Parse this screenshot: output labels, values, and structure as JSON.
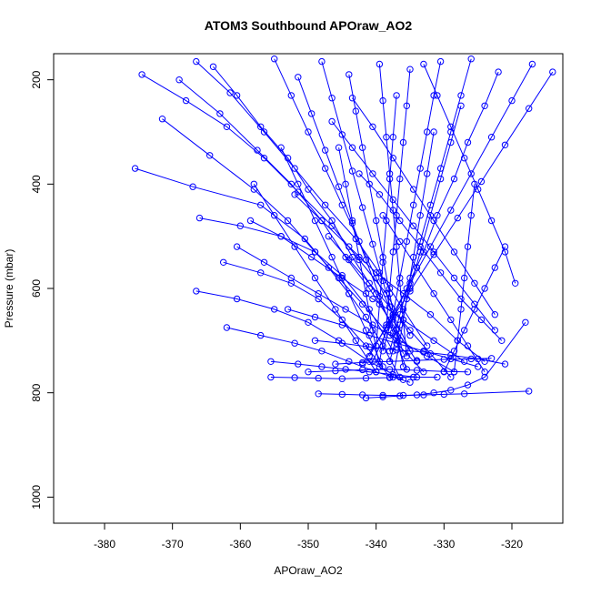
{
  "chart_data": {
    "type": "line",
    "title": "ATOM3 Southbound APOraw_AO2",
    "xlabel": "APOraw_AO2",
    "ylabel": "Pressure (mbar)",
    "xlim": [
      -387.5,
      -312.5
    ],
    "ylim": [
      1050,
      150
    ],
    "y_axis_inverted": true,
    "x_ticks": [
      {
        "value": -380,
        "label": "-380"
      },
      {
        "value": -370,
        "label": "-370"
      },
      {
        "value": -360,
        "label": "-360"
      },
      {
        "value": -350,
        "label": "-350"
      },
      {
        "value": -340,
        "label": "-340"
      },
      {
        "value": -330,
        "label": "-330"
      },
      {
        "value": -320,
        "label": "-320"
      }
    ],
    "y_ticks": [
      {
        "value": 200,
        "label": "200"
      },
      {
        "value": 400,
        "label": "400"
      },
      {
        "value": 600,
        "label": "600"
      },
      {
        "value": 800,
        "label": "800"
      },
      {
        "value": 1000,
        "label": "1000"
      }
    ],
    "grid": false,
    "marker": "open-circle",
    "color": "#0000ff",
    "series": [
      {
        "x": [
          -375.5,
          -367.0,
          -357.0,
          -350.5,
          -347.0,
          -344.0,
          -341.5,
          -339.0,
          -336.5
        ],
        "y": [
          370,
          405,
          440,
          505,
          560,
          610,
          655,
          710,
          770
        ]
      },
      {
        "x": [
          -371.5,
          -364.5,
          -358.0,
          -353.0,
          -349.0,
          -345.5,
          -342.0,
          -338.0,
          -333.0
        ],
        "y": [
          275,
          345,
          410,
          470,
          530,
          580,
          630,
          690,
          760
        ]
      },
      {
        "x": [
          -369.0,
          -363.0,
          -357.5,
          -352.5,
          -348.0,
          -344.5,
          -341.0,
          -337.5,
          -334.0
        ],
        "y": [
          200,
          265,
          335,
          400,
          470,
          540,
          600,
          670,
          740
        ]
      },
      {
        "x": [
          -366.5,
          -361.5,
          -356.5,
          -352.0,
          -347.5,
          -343.0,
          -339.5,
          -336.0,
          -332.5
        ],
        "y": [
          165,
          225,
          300,
          370,
          440,
          505,
          570,
          640,
          710
        ]
      },
      {
        "x": [
          -374.5,
          -368.0,
          -362.0,
          -356.5,
          -351.5,
          -346.5,
          -342.5,
          -338.5,
          -335.0
        ],
        "y": [
          190,
          240,
          290,
          350,
          415,
          480,
          545,
          610,
          690
        ]
      },
      {
        "x": [
          -364.0,
          -360.5,
          -357.0,
          -353.0,
          -350.0,
          -346.5,
          -343.5,
          -340.0,
          -337.0
        ],
        "y": [
          175,
          230,
          290,
          350,
          410,
          470,
          540,
          610,
          690
        ]
      },
      {
        "x": [
          -366.0,
          -360.0,
          -354.0,
          -349.0,
          -345.0,
          -341.0,
          -337.5
        ],
        "y": [
          465,
          480,
          500,
          530,
          575,
          640,
          720
        ]
      },
      {
        "x": [
          -362.5,
          -357.0,
          -352.5,
          -348.5,
          -345.0,
          -341.5,
          -338.0
        ],
        "y": [
          550,
          570,
          590,
          620,
          660,
          710,
          770
        ]
      },
      {
        "x": [
          -366.5,
          -360.5,
          -355.0,
          -350.0,
          -345.5,
          -341.0,
          -336.0
        ],
        "y": [
          605,
          620,
          640,
          665,
          700,
          740,
          775
        ]
      },
      {
        "x": [
          -362.0,
          -357.0,
          -352.0,
          -348.0,
          -344.0,
          -340.0,
          -335.0
        ],
        "y": [
          675,
          690,
          705,
          720,
          740,
          760,
          780
        ]
      },
      {
        "x": [
          -355.5,
          -351.5,
          -348.0,
          -344.5,
          -341.0,
          -337.5,
          -334.0
        ],
        "y": [
          740,
          745,
          750,
          755,
          760,
          765,
          770
        ]
      },
      {
        "x": [
          -355.5,
          -352.0,
          -348.5,
          -345.0,
          -341.5,
          -338.0,
          -334.5,
          -331.0
        ],
        "y": [
          770,
          771,
          772,
          773,
          772,
          771,
          770,
          770
        ]
      },
      {
        "x": [
          -348.5,
          -345.0,
          -342.0,
          -339.0,
          -336.0,
          -333.0,
          -330.0,
          -327.0,
          -317.5
        ],
        "y": [
          802,
          803,
          804,
          805,
          805,
          804,
          803,
          802,
          797
        ]
      },
      {
        "x": [
          -341.5,
          -339.0,
          -336.5,
          -334.0,
          -331.5,
          -329.0,
          -326.5,
          -324.0,
          -318.0
        ],
        "y": [
          810,
          808,
          806,
          804,
          800,
          795,
          785,
          770,
          665
        ]
      },
      {
        "x": [
          -326.0,
          -327.5,
          -329.0,
          -330.5,
          -332.0,
          -333.5,
          -335.0,
          -336.5,
          -338.0
        ],
        "y": [
          160,
          230,
          300,
          370,
          440,
          510,
          580,
          650,
          720
        ]
      },
      {
        "x": [
          -322.0,
          -324.0,
          -326.5,
          -328.5,
          -331.0,
          -333.0,
          -335.5,
          -338.0,
          -340.5
        ],
        "y": [
          185,
          250,
          320,
          390,
          460,
          530,
          600,
          670,
          740
        ]
      },
      {
        "x": [
          -317.0,
          -320.0,
          -323.0,
          -326.0,
          -329.0,
          -332.0,
          -335.0,
          -338.0,
          -341.0
        ],
        "y": [
          170,
          240,
          310,
          380,
          450,
          520,
          590,
          660,
          730
        ]
      },
      {
        "x": [
          -314.0,
          -317.5,
          -321.0,
          -324.5,
          -328.0,
          -331.5,
          -335.0,
          -338.5,
          -342.0
        ],
        "y": [
          185,
          255,
          325,
          395,
          465,
          535,
          605,
          675,
          745
        ]
      },
      {
        "x": [
          -330.5,
          -331.5,
          -332.5,
          -333.5,
          -334.5,
          -335.5,
          -336.5,
          -337.5,
          -339.0
        ],
        "y": [
          165,
          230,
          300,
          370,
          440,
          510,
          580,
          650,
          720
        ]
      },
      {
        "x": [
          -335.0,
          -335.5,
          -336.0,
          -336.5,
          -337.0,
          -337.5,
          -338.0,
          -338.5,
          -339.5
        ],
        "y": [
          180,
          250,
          320,
          390,
          460,
          530,
          600,
          670,
          740
        ]
      },
      {
        "x": [
          -339.5,
          -339.0,
          -338.5,
          -338.0,
          -337.5,
          -337.0,
          -336.5,
          -336.0,
          -335.5
        ],
        "y": [
          170,
          240,
          310,
          380,
          450,
          520,
          590,
          660,
          730
        ]
      },
      {
        "x": [
          -344.0,
          -343.0,
          -342.0,
          -341.0,
          -340.0,
          -339.0,
          -338.0,
          -337.0,
          -336.0
        ],
        "y": [
          190,
          260,
          330,
          400,
          470,
          540,
          610,
          680,
          750
        ]
      },
      {
        "x": [
          -348.0,
          -346.5,
          -345.0,
          -343.5,
          -342.0,
          -340.5,
          -339.0,
          -337.5,
          -336.0
        ],
        "y": [
          165,
          235,
          305,
          375,
          445,
          515,
          585,
          655,
          725
        ]
      },
      {
        "x": [
          -351.5,
          -349.5,
          -347.5,
          -345.5,
          -343.5,
          -341.5,
          -339.5,
          -337.5,
          -335.5
        ],
        "y": [
          195,
          265,
          335,
          405,
          475,
          545,
          615,
          685,
          755
        ]
      },
      {
        "x": [
          -355.0,
          -352.5,
          -350.0,
          -347.5,
          -345.0,
          -342.5,
          -340.0,
          -337.5,
          -335.0
        ],
        "y": [
          160,
          230,
          300,
          370,
          440,
          510,
          580,
          650,
          720
        ]
      },
      {
        "x": [
          -346.5,
          -343.5,
          -340.5,
          -337.5,
          -334.5,
          -331.5,
          -328.5,
          -325.5,
          -322.5
        ],
        "y": [
          280,
          330,
          380,
          430,
          480,
          530,
          580,
          630,
          680
        ]
      },
      {
        "x": [
          -342.5,
          -339.5,
          -336.5,
          -333.5,
          -330.5,
          -327.5,
          -324.5,
          -321.5
        ],
        "y": [
          380,
          420,
          470,
          520,
          570,
          620,
          660,
          700
        ]
      },
      {
        "x": [
          -352.0,
          -348.0,
          -344.0,
          -340.0,
          -336.0,
          -332.0,
          -328.0,
          -324.0
        ],
        "y": [
          420,
          470,
          520,
          570,
          610,
          650,
          700,
          740
        ]
      },
      {
        "x": [
          -358.5,
          -354.0,
          -349.5,
          -345.0,
          -340.5,
          -336.0,
          -331.5,
          -327.0
        ],
        "y": [
          470,
          500,
          540,
          580,
          620,
          660,
          700,
          740
        ]
      },
      {
        "x": [
          -360.5,
          -356.5,
          -352.5,
          -348.5,
          -344.5,
          -340.5,
          -336.5,
          -332.5,
          -328.5
        ],
        "y": [
          520,
          550,
          580,
          610,
          640,
          670,
          700,
          730,
          760
        ]
      },
      {
        "x": [
          -353.0,
          -349.0,
          -345.0,
          -341.0,
          -337.0,
          -333.0,
          -329.0,
          -325.0
        ],
        "y": [
          640,
          655,
          670,
          690,
          705,
          720,
          735,
          750
        ]
      },
      {
        "x": [
          -349.0,
          -345.0,
          -341.0,
          -337.0,
          -333.0,
          -329.0,
          -325.0,
          -321.0
        ],
        "y": [
          700,
          705,
          712,
          718,
          722,
          728,
          735,
          745
        ]
      },
      {
        "x": [
          -346.0,
          -342.0,
          -338.0,
          -334.0,
          -330.0,
          -326.0,
          -323.0
        ],
        "y": [
          745,
          742,
          740,
          738,
          736,
          735,
          734
        ]
      },
      {
        "x": [
          -350.0,
          -346.0,
          -342.0,
          -338.0,
          -334.0,
          -330.0,
          -326.5
        ],
        "y": [
          760,
          758,
          756,
          755,
          757,
          759,
          760
        ]
      },
      {
        "x": [
          -343.5,
          -340.5,
          -337.5,
          -334.5,
          -331.5,
          -328.5,
          -325.5,
          -322.5
        ],
        "y": [
          235,
          290,
          350,
          410,
          470,
          530,
          590,
          650
        ]
      },
      {
        "x": [
          -333.0,
          -331.0,
          -329.0,
          -327.0,
          -325.0,
          -323.0,
          -321.0,
          -319.5
        ],
        "y": [
          170,
          230,
          290,
          350,
          410,
          470,
          530,
          590
        ]
      },
      {
        "x": [
          -327.5,
          -329.0,
          -330.5,
          -332.0,
          -333.5,
          -335.0,
          -336.5,
          -338.0
        ],
        "y": [
          250,
          320,
          390,
          460,
          530,
          600,
          670,
          740
        ]
      },
      {
        "x": [
          -331.5,
          -332.5,
          -333.5,
          -334.5,
          -335.5,
          -336.5,
          -337.5
        ],
        "y": [
          300,
          380,
          460,
          540,
          620,
          700,
          770
        ]
      },
      {
        "x": [
          -337.0,
          -337.5,
          -338.0,
          -338.5,
          -339.0,
          -339.5,
          -340.0
        ],
        "y": [
          230,
          310,
          390,
          470,
          550,
          630,
          710
        ]
      },
      {
        "x": [
          -345.5,
          -344.5,
          -343.5,
          -342.5,
          -341.5,
          -340.5,
          -339.5
        ],
        "y": [
          330,
          400,
          470,
          540,
          610,
          680,
          750
        ]
      },
      {
        "x": [
          -354.0,
          -351.5,
          -349.0,
          -346.5,
          -344.0,
          -341.5,
          -339.0
        ],
        "y": [
          330,
          400,
          470,
          540,
          610,
          680,
          750
        ]
      },
      {
        "x": [
          -358.0,
          -355.0,
          -352.0,
          -349.0,
          -346.0,
          -343.0,
          -340.0
        ],
        "y": [
          400,
          460,
          520,
          580,
          640,
          700,
          760
        ]
      },
      {
        "x": [
          -347.0,
          -344.0,
          -341.0,
          -338.0,
          -335.0,
          -332.0,
          -329.0
        ],
        "y": [
          500,
          545,
          590,
          635,
          680,
          725,
          770
        ]
      },
      {
        "x": [
          -339.0,
          -336.5,
          -334.0,
          -331.5,
          -329.0,
          -326.5,
          -324.0
        ],
        "y": [
          460,
          510,
          560,
          610,
          660,
          710,
          760
        ]
      },
      {
        "x": [
          -325.5,
          -326.0,
          -326.5,
          -327.0,
          -327.5,
          -328.0,
          -328.5
        ],
        "y": [
          400,
          460,
          520,
          580,
          640,
          700,
          760
        ]
      },
      {
        "x": [
          -321.0,
          -322.5,
          -324.0,
          -325.5,
          -327.0,
          -328.5,
          -330.0
        ],
        "y": [
          520,
          560,
          600,
          640,
          680,
          720,
          760
        ]
      }
    ]
  }
}
